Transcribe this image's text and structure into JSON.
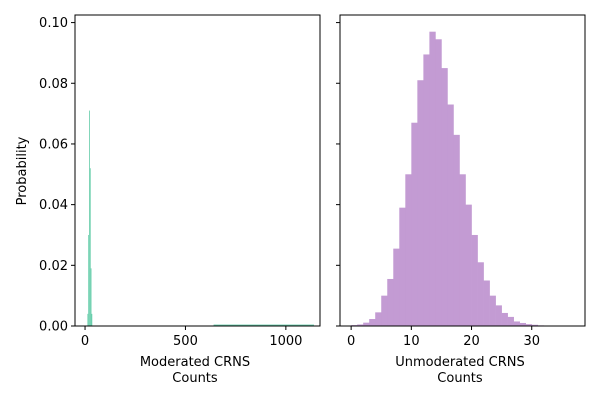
{
  "chart_data": [
    {
      "type": "bar",
      "ylabel": "Probability",
      "xlabel_lines": [
        "Moderated CRNS",
        "Counts"
      ],
      "color": "#66cdaa",
      "xlim": [
        -50,
        1170
      ],
      "ylim": [
        0,
        0.1025
      ],
      "xticks": [
        0,
        500,
        1000
      ],
      "yticks": [
        0.0,
        0.02,
        0.04,
        0.06,
        0.08,
        0.1
      ],
      "ytick_labels": [
        "0.00",
        "0.02",
        "0.04",
        "0.06",
        "0.08",
        "0.10"
      ],
      "grid": false,
      "bin_width": 4,
      "bins": [
        {
          "x": 12,
          "value": 0.004
        },
        {
          "x": 16,
          "value": 0.03
        },
        {
          "x": 20,
          "value": 0.071
        },
        {
          "x": 24,
          "value": 0.052
        },
        {
          "x": 28,
          "value": 0.019
        },
        {
          "x": 32,
          "value": 0.004
        }
      ],
      "tail_range": [
        640,
        1140
      ],
      "tail_value": 0.0003
    },
    {
      "type": "bar",
      "xlabel_lines": [
        "Unmoderated CRNS",
        "Counts"
      ],
      "color": "#c39bd3",
      "xlim": [
        -1.85,
        38.85
      ],
      "ylim": [
        0,
        0.1025
      ],
      "xticks": [
        0,
        10,
        20,
        30
      ],
      "yticks": [
        0.0,
        0.02,
        0.04,
        0.06,
        0.08,
        0.1
      ],
      "grid": false,
      "bin_width": 1,
      "bin_start": 0,
      "values": [
        0.0003,
        0.0005,
        0.0011,
        0.0023,
        0.0045,
        0.01,
        0.0155,
        0.0255,
        0.039,
        0.05,
        0.067,
        0.081,
        0.0895,
        0.097,
        0.0945,
        0.085,
        0.073,
        0.063,
        0.05,
        0.04,
        0.03,
        0.021,
        0.015,
        0.01,
        0.0068,
        0.0043,
        0.003,
        0.0015,
        0.001,
        0.0006,
        0.0004,
        0.0002,
        0.0001,
        0.0001,
        0.0001,
        0.0001,
        0.0001
      ]
    }
  ]
}
